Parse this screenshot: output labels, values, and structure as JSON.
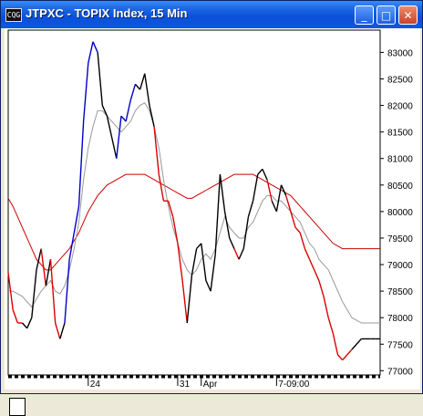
{
  "window": {
    "app_icon": "CQG",
    "title": "JTPXC - TOPIX Index, 15 Min",
    "buttons": {
      "minimize": "_",
      "maximize": "□",
      "close": "✕"
    }
  },
  "chart_data": {
    "type": "line",
    "title": "JTPXC - TOPIX Index, 15 Min",
    "y_ticks": [
      "83000",
      "82500",
      "82000",
      "81500",
      "81000",
      "80500",
      "80000",
      "79500",
      "79000",
      "78500",
      "78000",
      "77500",
      "77000"
    ],
    "ylim": [
      76920,
      83420
    ],
    "x_labels": [
      {
        "idx": 17,
        "label": "24"
      },
      {
        "idx": 36,
        "label": "31"
      },
      {
        "idx": 41,
        "label": "Apr"
      },
      {
        "idx": 57,
        "label": "7-09:00"
      }
    ],
    "x_count": 80,
    "colors": {
      "up": "#0000cc",
      "neutral": "#000000",
      "down": "#dd0000",
      "slow_ma": "#cc0000",
      "fast_ma": "#999999"
    },
    "series": [
      {
        "name": "price",
        "values": [
          78850,
          78150,
          77900,
          77900,
          77800,
          78000,
          78900,
          79300,
          78600,
          79100,
          77900,
          77600,
          77900,
          79100,
          79600,
          80100,
          81700,
          82800,
          83200,
          83000,
          82000,
          81800,
          81400,
          81000,
          81800,
          81700,
          82100,
          82400,
          82300,
          82600,
          82000,
          81600,
          80700,
          80200,
          80200,
          79900,
          79400,
          78700,
          77900,
          78800,
          79300,
          79400,
          78700,
          78500,
          79200,
          80700,
          80000,
          79500,
          79300,
          79100,
          79300,
          79900,
          80200,
          80700,
          80800,
          80600,
          80200,
          80000,
          80500,
          80300,
          80000,
          79700,
          79600,
          79300,
          79100,
          78900,
          78700,
          78400,
          78000,
          77700,
          77300,
          77200,
          77300,
          77400,
          77500,
          77600,
          77600,
          77600,
          77600,
          77600
        ],
        "colors": [
          "neutral",
          "down",
          "down",
          "down",
          "neutral",
          "neutral",
          "neutral",
          "neutral",
          "down",
          "neutral",
          "down",
          "down",
          "neutral",
          "up",
          "up",
          "up",
          "up",
          "up",
          "up",
          "up",
          "neutral",
          "neutral",
          "neutral",
          "neutral",
          "up",
          "up",
          "up",
          "up",
          "neutral",
          "neutral",
          "neutral",
          "neutral",
          "down",
          "down",
          "down",
          "down",
          "down",
          "down",
          "down",
          "neutral",
          "neutral",
          "neutral",
          "neutral",
          "neutral",
          "neutral",
          "neutral",
          "neutral",
          "neutral",
          "neutral",
          "down",
          "neutral",
          "neutral",
          "neutral",
          "neutral",
          "neutral",
          "neutral",
          "down",
          "neutral",
          "neutral",
          "neutral",
          "down",
          "down",
          "down",
          "down",
          "down",
          "down",
          "down",
          "down",
          "down",
          "down",
          "down",
          "down",
          "down",
          "down",
          "neutral",
          "neutral",
          "neutral",
          "neutral",
          "neutral",
          "neutral"
        ]
      },
      {
        "name": "fast_ma",
        "values": [
          78500,
          78500,
          78450,
          78400,
          78300,
          78200,
          78350,
          78500,
          78600,
          78700,
          78500,
          78450,
          78600,
          78900,
          79300,
          79800,
          80600,
          81200,
          81600,
          81900,
          81900,
          81800,
          81700,
          81600,
          81500,
          81600,
          81700,
          81900,
          82000,
          82050,
          81900,
          81600,
          81200,
          80600,
          80100,
          79700,
          79400,
          79100,
          78900,
          78800,
          78900,
          79100,
          79200,
          79100,
          79300,
          79600,
          79900,
          79700,
          79600,
          79500,
          79500,
          79700,
          79800,
          80000,
          80200,
          80300,
          80300,
          80200,
          80200,
          80100,
          80000,
          79900,
          79800,
          79600,
          79400,
          79300,
          79100,
          79000,
          78900,
          78700,
          78500,
          78300,
          78150,
          78000,
          77950,
          77900,
          77900,
          77900,
          77900,
          77900
        ]
      },
      {
        "name": "slow_ma",
        "values": [
          80250,
          80100,
          79900,
          79700,
          79500,
          79300,
          79100,
          79000,
          78900,
          78900,
          79000,
          79100,
          79200,
          79300,
          79450,
          79600,
          79800,
          80000,
          80150,
          80300,
          80400,
          80500,
          80550,
          80600,
          80650,
          80700,
          80700,
          80700,
          80700,
          80700,
          80650,
          80600,
          80550,
          80500,
          80450,
          80400,
          80350,
          80300,
          80250,
          80250,
          80300,
          80350,
          80400,
          80450,
          80500,
          80550,
          80600,
          80650,
          80700,
          80700,
          80700,
          80700,
          80700,
          80650,
          80600,
          80550,
          80500,
          80450,
          80400,
          80350,
          80300,
          80200,
          80100,
          80000,
          79900,
          79800,
          79700,
          79600,
          79500,
          79400,
          79350,
          79300,
          79300,
          79300,
          79300,
          79300,
          79300,
          79300,
          79300,
          79300
        ]
      }
    ]
  }
}
